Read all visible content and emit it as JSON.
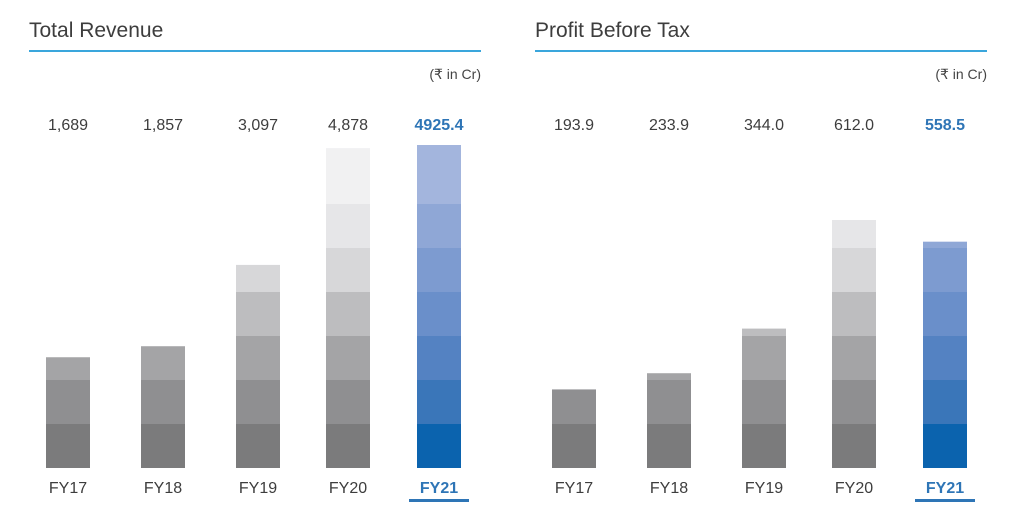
{
  "charts": [
    {
      "id": "revenue",
      "title": "Total Revenue",
      "unit": "(₹ in Cr)",
      "highlight_color": "#2e75b6",
      "chart_data": {
        "type": "bar",
        "title": "Total Revenue",
        "ylabel": "(₹ in Cr)",
        "categories": [
          "FY17",
          "FY18",
          "FY19",
          "FY20",
          "FY21"
        ],
        "values": [
          1689,
          1857,
          3097,
          4878,
          4925.4
        ],
        "value_labels": [
          "1,689",
          "1,857",
          "3,097",
          "4,878",
          "4925.4"
        ],
        "highlight_index": 4,
        "ylim": [
          0,
          5100
        ],
        "grid": false,
        "legend": "none"
      }
    },
    {
      "id": "pbt",
      "title": "Profit Before Tax",
      "unit": "(₹ in Cr)",
      "highlight_color": "#2e75b6",
      "chart_data": {
        "type": "bar",
        "title": "Profit Before Tax",
        "ylabel": "(₹ in Cr)",
        "categories": [
          "FY17",
          "FY18",
          "FY19",
          "FY20",
          "FY21"
        ],
        "values": [
          193.9,
          233.9,
          344.0,
          612.0,
          558.5
        ],
        "value_labels": [
          "193.9",
          "233.9",
          "344.0",
          "612.0",
          "558.5"
        ],
        "highlight_index": 4,
        "ylim": [
          0,
          650
        ],
        "grid": false,
        "legend": "none"
      }
    }
  ],
  "colors": {
    "gray_segments": [
      "#7b7b7c",
      "#8f8f91",
      "#a4a4a6",
      "#bdbdbf",
      "#d7d7d9",
      "#e6e6e8",
      "#f1f1f2"
    ],
    "blue_segments": [
      "#0b63ae",
      "#3a76b9",
      "#5482c2",
      "#6a8fca",
      "#7d9bd0",
      "#8fa7d6",
      "#a3b5dd"
    ],
    "value_text": "#3d3d3d",
    "highlight_text": "#2e75b6",
    "underline": "#2e75b6",
    "title_rule": "#3aa6dc"
  }
}
